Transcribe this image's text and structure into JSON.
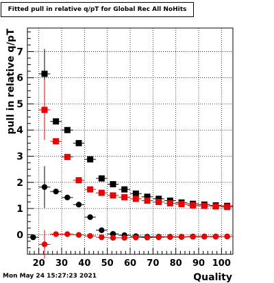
{
  "footer": {
    "timestamp": "Mon May 24 15:27:23 2021"
  },
  "chart_data": {
    "type": "scatter",
    "title": "Fitted pull in relative q/pT for Global Rec All NoHits",
    "xlabel": "Quality",
    "ylabel": "pull in relative q/pT",
    "xlim": [
      15,
      105
    ],
    "ylim": [
      -0.75,
      7.9
    ],
    "xticks": [
      20,
      30,
      40,
      50,
      60,
      70,
      80,
      90,
      100
    ],
    "yticks": [
      0,
      1,
      2,
      3,
      4,
      5,
      6,
      7
    ],
    "grid": true,
    "series": [
      {
        "marker": "square",
        "color": "#000000",
        "x": [
          22.5,
          27.5,
          32.5,
          37.5,
          42.5,
          47.5,
          52.5,
          57.5,
          62.5,
          67.5,
          72.5,
          77.5,
          82.5,
          87.5,
          92.5,
          97.5,
          102.5
        ],
        "y": [
          6.15,
          4.33,
          4.0,
          3.5,
          2.88,
          2.15,
          1.93,
          1.73,
          1.57,
          1.45,
          1.37,
          1.3,
          1.23,
          1.18,
          1.15,
          1.12,
          1.1
        ],
        "err": [
          0.95,
          0.1,
          0.07,
          0.06,
          0.05,
          0.04,
          0.03,
          0.03,
          0.03,
          0.03,
          0.02,
          0.02,
          0.02,
          0.02,
          0.02,
          0.02,
          0.02
        ]
      },
      {
        "marker": "square",
        "color": "#ee0000",
        "x": [
          22.5,
          27.5,
          32.5,
          37.5,
          42.5,
          47.5,
          52.5,
          57.5,
          62.5,
          67.5,
          72.5,
          77.5,
          82.5,
          87.5,
          92.5,
          97.5,
          102.5
        ],
        "y": [
          4.77,
          3.57,
          2.97,
          2.08,
          1.73,
          1.6,
          1.5,
          1.43,
          1.37,
          1.3,
          1.25,
          1.2,
          1.17,
          1.12,
          1.1,
          1.08,
          1.06
        ],
        "err": [
          1.15,
          0.1,
          0.07,
          0.06,
          0.05,
          0.04,
          0.03,
          0.03,
          0.03,
          0.03,
          0.02,
          0.02,
          0.02,
          0.02,
          0.02,
          0.02,
          0.02
        ]
      },
      {
        "marker": "circle",
        "color": "#000000",
        "x": [
          17.5,
          22.5,
          27.5,
          32.5,
          37.5,
          42.5,
          47.5,
          52.5,
          57.5,
          62.5,
          67.5,
          72.5,
          77.5,
          82.5,
          87.5,
          92.5,
          97.5,
          102.5
        ],
        "y": [
          -0.1,
          1.82,
          1.65,
          1.42,
          1.15,
          0.67,
          0.17,
          0.03,
          -0.02,
          -0.06,
          -0.08,
          -0.08,
          -0.08,
          -0.08,
          -0.07,
          -0.07,
          -0.07,
          -0.07
        ],
        "err": [
          0.05,
          0.8,
          0.1,
          0.07,
          0.06,
          0.05,
          0.04,
          0.03,
          0.03,
          0.03,
          0.02,
          0.02,
          0.02,
          0.02,
          0.02,
          0.02,
          0.02,
          0.02
        ]
      },
      {
        "marker": "circle",
        "color": "#ee0000",
        "x": [
          22.5,
          27.5,
          32.5,
          37.5,
          42.5,
          47.5,
          52.5,
          57.5,
          62.5,
          67.5,
          72.5,
          77.5,
          82.5,
          87.5,
          92.5,
          97.5,
          102.5
        ],
        "y": [
          -0.37,
          0.02,
          0.02,
          -0.01,
          -0.05,
          -0.1,
          -0.12,
          -0.12,
          -0.11,
          -0.11,
          -0.1,
          -0.09,
          -0.09,
          -0.08,
          -0.08,
          -0.08,
          -0.07
        ],
        "err": [
          0.55,
          0.1,
          0.07,
          0.06,
          0.05,
          0.04,
          0.03,
          0.03,
          0.03,
          0.03,
          0.02,
          0.02,
          0.02,
          0.02,
          0.02,
          0.02,
          0.02
        ]
      }
    ]
  }
}
